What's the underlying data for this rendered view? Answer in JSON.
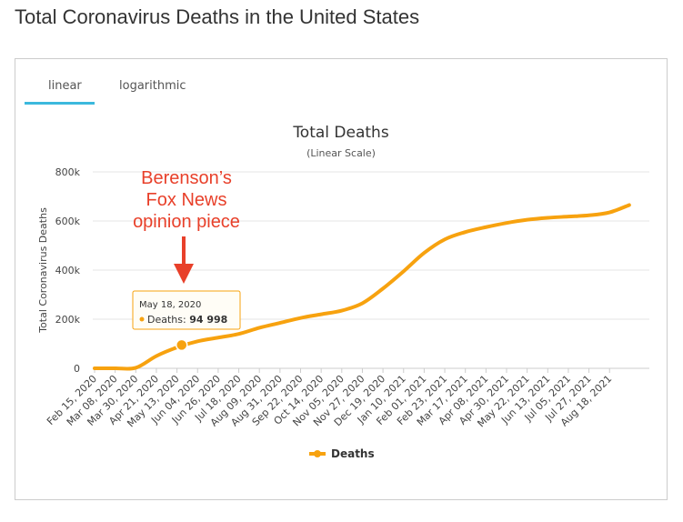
{
  "page": {
    "title": "Total Coronavirus Deaths in the United States"
  },
  "tabs": [
    {
      "label": "linear",
      "active": true
    },
    {
      "label": "logarithmic",
      "active": false
    }
  ],
  "colors": {
    "series": "#f7a20f",
    "annotation": "#e8402a",
    "tab_active": "#3bb9dd",
    "grid": "#e6e6e6"
  },
  "annotation": {
    "lines": [
      "Berenson’s",
      "Fox News",
      "opinion piece"
    ]
  },
  "tooltip": {
    "date": "May 18, 2020",
    "series": "Deaths",
    "value_text": "94 998"
  },
  "chart_data": {
    "type": "line",
    "title": "Total Deaths",
    "subtitle": "(Linear Scale)",
    "xlabel": "",
    "ylabel": "Total Coronavirus Deaths",
    "ylim": [
      0,
      800000
    ],
    "yticks": [
      0,
      200000,
      400000,
      600000,
      800000
    ],
    "ytick_labels": [
      "0",
      "200k",
      "400k",
      "600k",
      "800k"
    ],
    "x_tick_labels": [
      "Feb 15, 2020",
      "Mar 08, 2020",
      "Mar 30, 2020",
      "Apr 21, 2020",
      "May 13, 2020",
      "Jun 04, 2020",
      "Jun 26, 2020",
      "Jul 18, 2020",
      "Aug 09, 2020",
      "Aug 31, 2020",
      "Sep 22, 2020",
      "Oct 14, 2020",
      "Nov 05, 2020",
      "Nov 27, 2020",
      "Dec 19, 2020",
      "Jan 10, 2021",
      "Feb 01, 2021",
      "Feb 23, 2021",
      "Mar 17, 2021",
      "Apr 08, 2021",
      "Apr 30, 2021",
      "May 22, 2021",
      "Jun 13, 2021",
      "Jul 05, 2021",
      "Jul 27, 2021",
      "Aug 18, 2021"
    ],
    "legend": {
      "position": "bottom-center"
    },
    "grid": true,
    "highlight": {
      "x": "May 18, 2020",
      "y": 94998
    },
    "series": [
      {
        "name": "Deaths",
        "x": [
          "Feb 15, 2020",
          "Mar 08, 2020",
          "Mar 30, 2020",
          "Apr 21, 2020",
          "May 13, 2020",
          "Jun 04, 2020",
          "Jun 26, 2020",
          "Jul 18, 2020",
          "Aug 09, 2020",
          "Aug 31, 2020",
          "Sep 22, 2020",
          "Oct 14, 2020",
          "Nov 05, 2020",
          "Nov 27, 2020",
          "Dec 19, 2020",
          "Jan 10, 2021",
          "Feb 01, 2021",
          "Feb 23, 2021",
          "Mar 17, 2021",
          "Apr 08, 2021",
          "Apr 30, 2021",
          "May 22, 2021",
          "Jun 13, 2021",
          "Jul 05, 2021",
          "Jul 27, 2021",
          "Aug 18, 2021",
          "Sep 08, 2021"
        ],
        "values": [
          0,
          0,
          2000,
          50000,
          85000,
          110000,
          125000,
          140000,
          165000,
          185000,
          205000,
          220000,
          235000,
          265000,
          325000,
          395000,
          470000,
          525000,
          555000,
          575000,
          592000,
          605000,
          613000,
          618000,
          623000,
          635000,
          665000
        ]
      }
    ]
  }
}
